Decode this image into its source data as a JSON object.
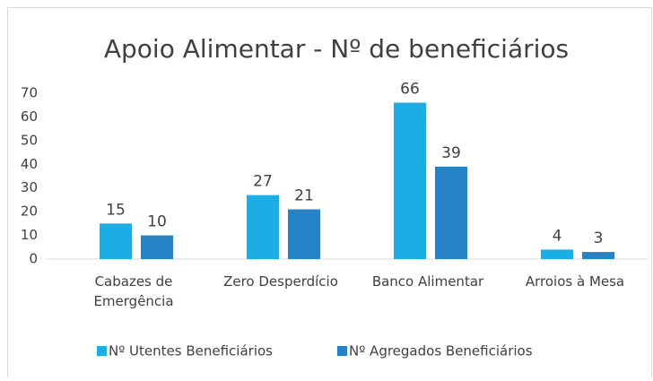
{
  "chart_data": {
    "type": "bar",
    "title": "Apoio Alimentar - Nº de beneficiários",
    "categories": [
      "Cabazes de Emergência",
      "Zero Desperdício",
      "Banco Alimentar",
      "Arroios à Mesa"
    ],
    "series": [
      {
        "name": "Nº Utentes Beneficiários",
        "color": "#1cade4",
        "values": [
          15,
          27,
          66,
          4
        ]
      },
      {
        "name": "Nº Agregados Beneficiários",
        "color": "#2683c6",
        "values": [
          10,
          21,
          39,
          3
        ]
      }
    ],
    "ylim": [
      0,
      70
    ],
    "yticks": [
      0,
      10,
      20,
      30,
      40,
      50,
      60,
      70
    ],
    "grid": false,
    "legend": "bottom"
  }
}
